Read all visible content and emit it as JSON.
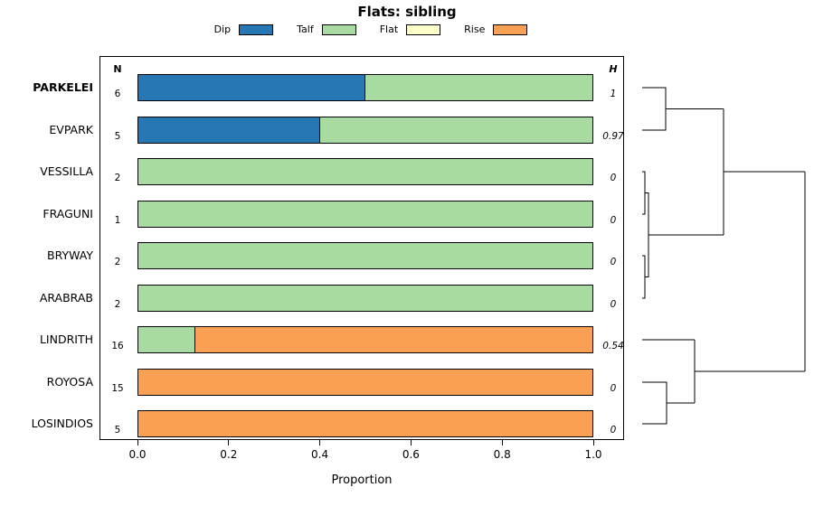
{
  "chart_data": {
    "type": "bar",
    "stacked": true,
    "orientation": "horizontal",
    "title": "Flats: sibling",
    "xlabel": "Proportion",
    "xlim": [
      0,
      1
    ],
    "grid": false,
    "legend_position": "top",
    "ticks": [
      {
        "value": 0.0,
        "label": "0.0"
      },
      {
        "value": 0.2,
        "label": "0.2"
      },
      {
        "value": 0.4,
        "label": "0.4"
      },
      {
        "value": 0.6,
        "label": "0.6"
      },
      {
        "value": 0.8,
        "label": "0.8"
      },
      {
        "value": 1.0,
        "label": "1.0"
      }
    ],
    "legend": [
      {
        "label": "Dip",
        "color": "#2777B4"
      },
      {
        "label": "Talf",
        "color": "#A8DBA2"
      },
      {
        "label": "Flat",
        "color": "#FFFFC9"
      },
      {
        "label": "Rise",
        "color": "#F9A054"
      }
    ],
    "col_headers": {
      "left": "N",
      "right": "H"
    },
    "rows": [
      {
        "label": "PARKELEI",
        "bold": true,
        "n": "6",
        "h": "1",
        "values": [
          0.5,
          0.5,
          0,
          0
        ]
      },
      {
        "label": "EVPARK",
        "bold": false,
        "n": "5",
        "h": "0.97",
        "values": [
          0.4,
          0.6,
          0,
          0
        ]
      },
      {
        "label": "VESSILLA",
        "bold": false,
        "n": "2",
        "h": "0",
        "values": [
          0,
          1,
          0,
          0
        ]
      },
      {
        "label": "FRAGUNI",
        "bold": false,
        "n": "1",
        "h": "0",
        "values": [
          0,
          1,
          0,
          0
        ]
      },
      {
        "label": "BRYWAY",
        "bold": false,
        "n": "2",
        "h": "0",
        "values": [
          0,
          1,
          0,
          0
        ]
      },
      {
        "label": "ARABRAB",
        "bold": false,
        "n": "2",
        "h": "0",
        "values": [
          0,
          1,
          0,
          0
        ]
      },
      {
        "label": "LINDRITH",
        "bold": false,
        "n": "16",
        "h": "0.54",
        "values": [
          0,
          0.125,
          0,
          0.875
        ]
      },
      {
        "label": "ROYOSA",
        "bold": false,
        "n": "15",
        "h": "0",
        "values": [
          0,
          0,
          0,
          1
        ]
      },
      {
        "label": "LOSINDIOS",
        "bold": false,
        "n": "5",
        "h": "0",
        "values": [
          0,
          0,
          0,
          1
        ]
      }
    ],
    "dendrogram": {
      "segments": [
        [
          [
            710,
            97
          ],
          [
            736,
            97
          ],
          [
            736,
            144
          ],
          [
            710,
            144
          ]
        ],
        [
          [
            736,
            120.5
          ],
          [
            800,
            120.5
          ]
        ],
        [
          [
            710,
            190
          ],
          [
            713,
            190
          ],
          [
            713,
            237
          ],
          [
            710,
            237
          ]
        ],
        [
          [
            710,
            283
          ],
          [
            713,
            283
          ],
          [
            713,
            330
          ],
          [
            710,
            330
          ]
        ],
        [
          [
            713,
            213.5
          ],
          [
            717,
            213.5
          ],
          [
            717,
            306.5
          ],
          [
            713,
            306.5
          ]
        ],
        [
          [
            717,
            260
          ],
          [
            800,
            260
          ]
        ],
        [
          [
            800,
            120.5
          ],
          [
            800,
            260
          ]
        ],
        [
          [
            800,
            190
          ],
          [
            890,
            190
          ]
        ],
        [
          [
            710,
            376
          ],
          [
            768,
            376
          ]
        ],
        [
          [
            710,
            423
          ],
          [
            737,
            423
          ],
          [
            737,
            469
          ],
          [
            710,
            469
          ]
        ],
        [
          [
            737,
            446
          ],
          [
            768,
            446
          ]
        ],
        [
          [
            768,
            376
          ],
          [
            768,
            446
          ]
        ],
        [
          [
            768,
            411
          ],
          [
            890,
            411
          ]
        ],
        [
          [
            890,
            190
          ],
          [
            890,
            411
          ]
        ]
      ]
    }
  }
}
